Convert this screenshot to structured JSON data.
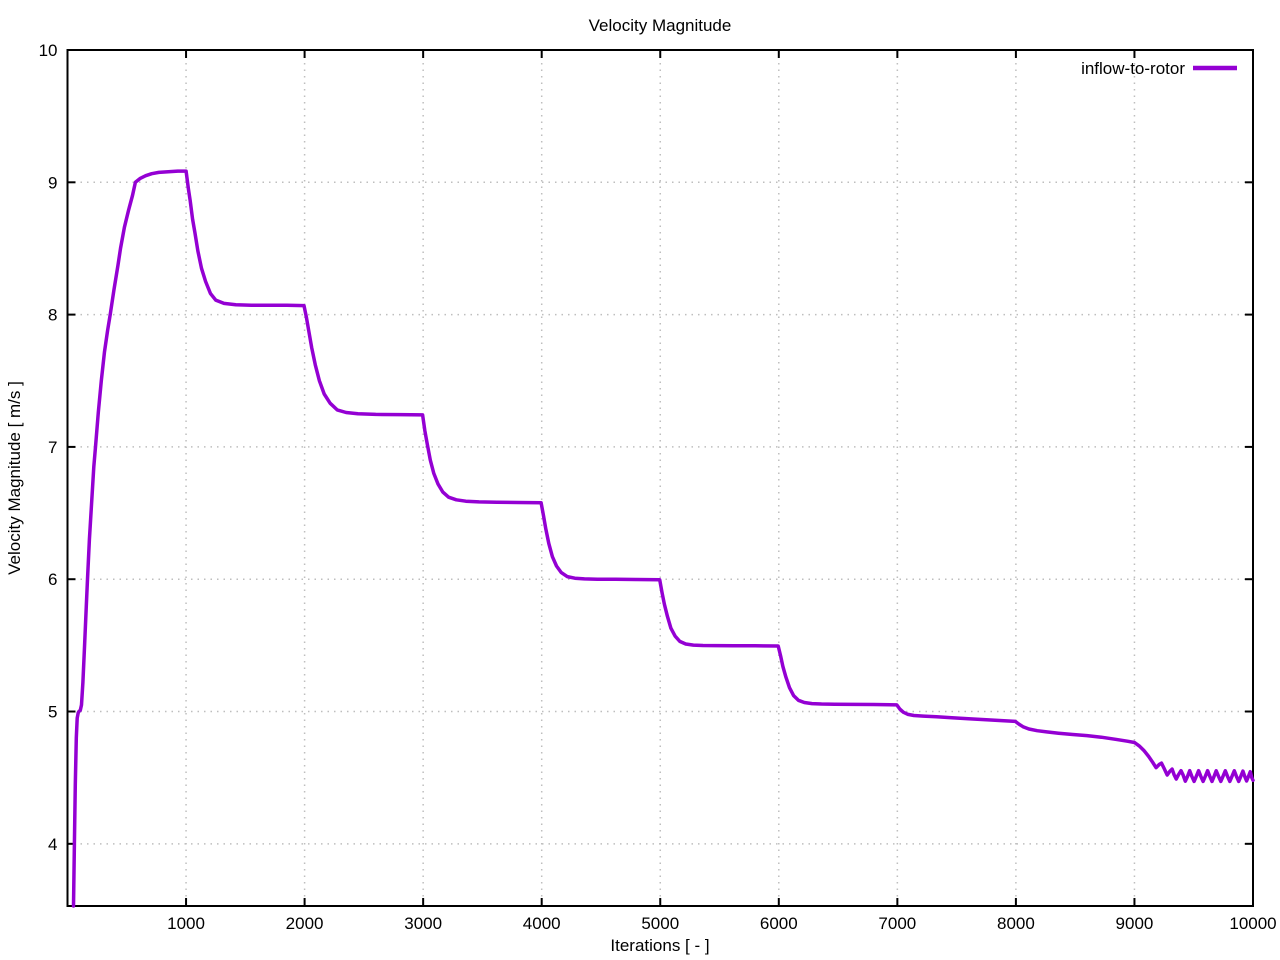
{
  "chart_data": {
    "type": "line",
    "title": "Velocity Magnitude",
    "xlabel": "Iterations [ - ]",
    "ylabel": "Velocity Magnitude [ m/s ]",
    "xlim": [
      0,
      10000
    ],
    "ylim": [
      3.53,
      10
    ],
    "xticks": [
      1000,
      2000,
      3000,
      4000,
      5000,
      6000,
      7000,
      8000,
      9000,
      10000
    ],
    "yticks": [
      4,
      5,
      6,
      7,
      8,
      9,
      10
    ],
    "grid": true,
    "grid_color": "#bebebe",
    "border_color": "#000000",
    "background_color": "#ffffff",
    "legend_position": "top-right-inside",
    "series": [
      {
        "name": "inflow-to-rotor",
        "color": "#9400d3",
        "points": [
          [
            51,
            3.53
          ],
          [
            58,
            4.0
          ],
          [
            66,
            4.45
          ],
          [
            74,
            4.8
          ],
          [
            82,
            4.95
          ],
          [
            90,
            4.99
          ],
          [
            96,
            5.0
          ],
          [
            108,
            5.01
          ],
          [
            118,
            5.05
          ],
          [
            130,
            5.22
          ],
          [
            145,
            5.52
          ],
          [
            158,
            5.78
          ],
          [
            169,
            6.0
          ],
          [
            185,
            6.3
          ],
          [
            205,
            6.6
          ],
          [
            222,
            6.85
          ],
          [
            236,
            7.0
          ],
          [
            260,
            7.26
          ],
          [
            285,
            7.5
          ],
          [
            312,
            7.72
          ],
          [
            338,
            7.88
          ],
          [
            360,
            8.0
          ],
          [
            392,
            8.19
          ],
          [
            425,
            8.37
          ],
          [
            447,
            8.5
          ],
          [
            480,
            8.66
          ],
          [
            515,
            8.79
          ],
          [
            548,
            8.9
          ],
          [
            573,
            9.0
          ],
          [
            615,
            9.03
          ],
          [
            660,
            9.05
          ],
          [
            710,
            9.065
          ],
          [
            770,
            9.075
          ],
          [
            850,
            9.08
          ],
          [
            930,
            9.085
          ],
          [
            1000,
            9.085
          ],
          [
            1020,
            8.95
          ],
          [
            1035,
            8.86
          ],
          [
            1055,
            8.72
          ],
          [
            1075,
            8.62
          ],
          [
            1100,
            8.48
          ],
          [
            1130,
            8.35
          ],
          [
            1165,
            8.25
          ],
          [
            1205,
            8.16
          ],
          [
            1250,
            8.11
          ],
          [
            1320,
            8.085
          ],
          [
            1420,
            8.075
          ],
          [
            1550,
            8.07
          ],
          [
            1700,
            8.07
          ],
          [
            1850,
            8.07
          ],
          [
            1995,
            8.068
          ],
          [
            2015,
            7.98
          ],
          [
            2035,
            7.88
          ],
          [
            2060,
            7.75
          ],
          [
            2090,
            7.62
          ],
          [
            2125,
            7.5
          ],
          [
            2165,
            7.4
          ],
          [
            2215,
            7.33
          ],
          [
            2275,
            7.28
          ],
          [
            2350,
            7.26
          ],
          [
            2450,
            7.25
          ],
          [
            2600,
            7.246
          ],
          [
            2800,
            7.244
          ],
          [
            2995,
            7.242
          ],
          [
            3015,
            7.12
          ],
          [
            3035,
            7.02
          ],
          [
            3060,
            6.9
          ],
          [
            3090,
            6.8
          ],
          [
            3125,
            6.72
          ],
          [
            3165,
            6.66
          ],
          [
            3215,
            6.62
          ],
          [
            3280,
            6.6
          ],
          [
            3360,
            6.59
          ],
          [
            3470,
            6.584
          ],
          [
            3620,
            6.581
          ],
          [
            3800,
            6.58
          ],
          [
            3995,
            6.578
          ],
          [
            4015,
            6.48
          ],
          [
            4035,
            6.38
          ],
          [
            4060,
            6.27
          ],
          [
            4090,
            6.17
          ],
          [
            4125,
            6.1
          ],
          [
            4165,
            6.05
          ],
          [
            4215,
            6.02
          ],
          [
            4280,
            6.008
          ],
          [
            4360,
            6.002
          ],
          [
            4470,
            6.0
          ],
          [
            4620,
            5.999
          ],
          [
            4800,
            5.998
          ],
          [
            4995,
            5.996
          ],
          [
            5015,
            5.9
          ],
          [
            5035,
            5.81
          ],
          [
            5060,
            5.72
          ],
          [
            5090,
            5.63
          ],
          [
            5125,
            5.57
          ],
          [
            5165,
            5.53
          ],
          [
            5215,
            5.51
          ],
          [
            5280,
            5.502
          ],
          [
            5360,
            5.499
          ],
          [
            5470,
            5.498
          ],
          [
            5620,
            5.497
          ],
          [
            5800,
            5.497
          ],
          [
            5995,
            5.495
          ],
          [
            6015,
            5.42
          ],
          [
            6035,
            5.34
          ],
          [
            6060,
            5.26
          ],
          [
            6090,
            5.18
          ],
          [
            6125,
            5.12
          ],
          [
            6165,
            5.085
          ],
          [
            6215,
            5.068
          ],
          [
            6280,
            5.06
          ],
          [
            6360,
            5.057
          ],
          [
            6470,
            5.055
          ],
          [
            6620,
            5.054
          ],
          [
            6800,
            5.053
          ],
          [
            6995,
            5.05
          ],
          [
            7020,
            5.02
          ],
          [
            7050,
            4.995
          ],
          [
            7090,
            4.978
          ],
          [
            7140,
            4.97
          ],
          [
            7220,
            4.965
          ],
          [
            7330,
            4.96
          ],
          [
            7460,
            4.953
          ],
          [
            7600,
            4.946
          ],
          [
            7750,
            4.938
          ],
          [
            7880,
            4.931
          ],
          [
            7995,
            4.925
          ],
          [
            8025,
            4.905
          ],
          [
            8060,
            4.885
          ],
          [
            8110,
            4.868
          ],
          [
            8180,
            4.855
          ],
          [
            8260,
            4.846
          ],
          [
            8360,
            4.836
          ],
          [
            8480,
            4.826
          ],
          [
            8600,
            4.818
          ],
          [
            8720,
            4.806
          ],
          [
            8840,
            4.79
          ],
          [
            8940,
            4.776
          ],
          [
            9000,
            4.766
          ],
          [
            9040,
            4.74
          ],
          [
            9080,
            4.705
          ],
          [
            9120,
            4.66
          ],
          [
            9155,
            4.615
          ],
          [
            9183,
            4.575
          ],
          [
            9210,
            4.6
          ],
          [
            9228,
            4.61
          ],
          [
            9250,
            4.57
          ],
          [
            9276,
            4.52
          ],
          [
            9300,
            4.55
          ],
          [
            9318,
            4.565
          ],
          [
            9335,
            4.52
          ],
          [
            9352,
            4.49
          ],
          [
            9370,
            4.52
          ],
          [
            9393,
            4.553
          ],
          [
            9410,
            4.52
          ],
          [
            9429,
            4.473
          ],
          [
            9448,
            4.51
          ],
          [
            9466,
            4.553
          ],
          [
            9484,
            4.51
          ],
          [
            9503,
            4.472
          ],
          [
            9522,
            4.51
          ],
          [
            9541,
            4.553
          ],
          [
            9560,
            4.51
          ],
          [
            9579,
            4.472
          ],
          [
            9598,
            4.51
          ],
          [
            9617,
            4.553
          ],
          [
            9636,
            4.51
          ],
          [
            9654,
            4.472
          ],
          [
            9672,
            4.51
          ],
          [
            9690,
            4.552
          ],
          [
            9709,
            4.51
          ],
          [
            9728,
            4.472
          ],
          [
            9747,
            4.51
          ],
          [
            9766,
            4.552
          ],
          [
            9785,
            4.51
          ],
          [
            9804,
            4.472
          ],
          [
            9823,
            4.51
          ],
          [
            9842,
            4.552
          ],
          [
            9860,
            4.51
          ],
          [
            9879,
            4.472
          ],
          [
            9897,
            4.51
          ],
          [
            9915,
            4.55
          ],
          [
            9930,
            4.51
          ],
          [
            9946,
            4.475
          ],
          [
            9962,
            4.51
          ],
          [
            9977,
            4.545
          ],
          [
            9990,
            4.5
          ],
          [
            10000,
            4.48
          ]
        ]
      }
    ]
  }
}
